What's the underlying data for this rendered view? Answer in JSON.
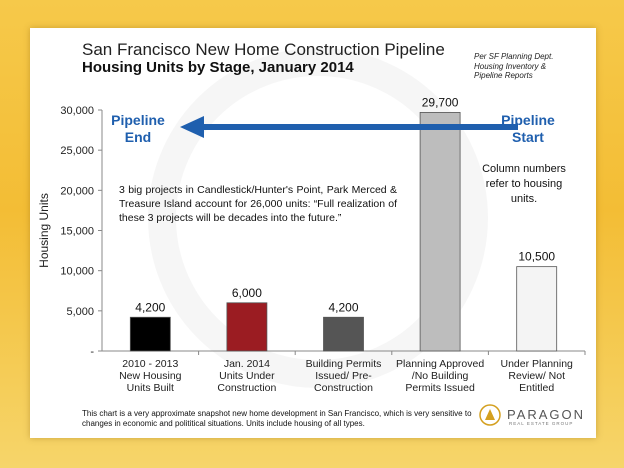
{
  "header": {
    "title": "San Francisco New Home Construction Pipeline",
    "subtitle": "Housing Units by Stage, January 2014",
    "source_lines": [
      "Per SF Planning Dept.",
      "Housing Inventory &",
      "Pipeline Reports"
    ]
  },
  "arrow": {
    "end_label_lines": [
      "Pipeline",
      "End"
    ],
    "start_label_lines": [
      "Pipeline",
      "Start"
    ],
    "color": "#1f5fae"
  },
  "annotation": "3 big projects in Candlestick/Hunter's Point, Park Merced & Treasure Island account for 26,000 units: “Full realization of these 3 projects will be decades into the future.”",
  "column_note": "Column numbers refer to housing units.",
  "footnote": "This chart is a very approximate snapshot new home development in San Francisco, which is very sensitive to changes in economic and polititical situations. Units include housing of all types.",
  "logo": {
    "name": "PARAGON",
    "tagline": "REAL ESTATE GROUP"
  },
  "chart_data": {
    "type": "bar",
    "ylabel": "Housing Units",
    "ylim": [
      0,
      30000
    ],
    "yticks": [
      0,
      5000,
      10000,
      15000,
      20000,
      25000,
      30000
    ],
    "ytick_labels": [
      "-",
      "5,000",
      "10,000",
      "15,000",
      "20,000",
      "25,000",
      "30,000"
    ],
    "grid": false,
    "categories": [
      [
        "2010 - 2013",
        "New Housing",
        "Units Built"
      ],
      [
        "Jan. 2014",
        "Units Under",
        "Construction"
      ],
      [
        "Building Permits",
        "Issued/ Pre-",
        "Construction"
      ],
      [
        "Planning Approved",
        "/No Building",
        "Permits Issued"
      ],
      [
        "Under Planning",
        "Review/ Not",
        "Entitled"
      ]
    ],
    "values": [
      4200,
      6000,
      4200,
      29700,
      10500
    ],
    "value_labels": [
      "4,200",
      "6,000",
      "4,200",
      "29,700",
      "10,500"
    ],
    "colors": [
      "#000000",
      "#9b1c22",
      "#555555",
      "#bdbdbd",
      "#f4f4f4"
    ]
  }
}
